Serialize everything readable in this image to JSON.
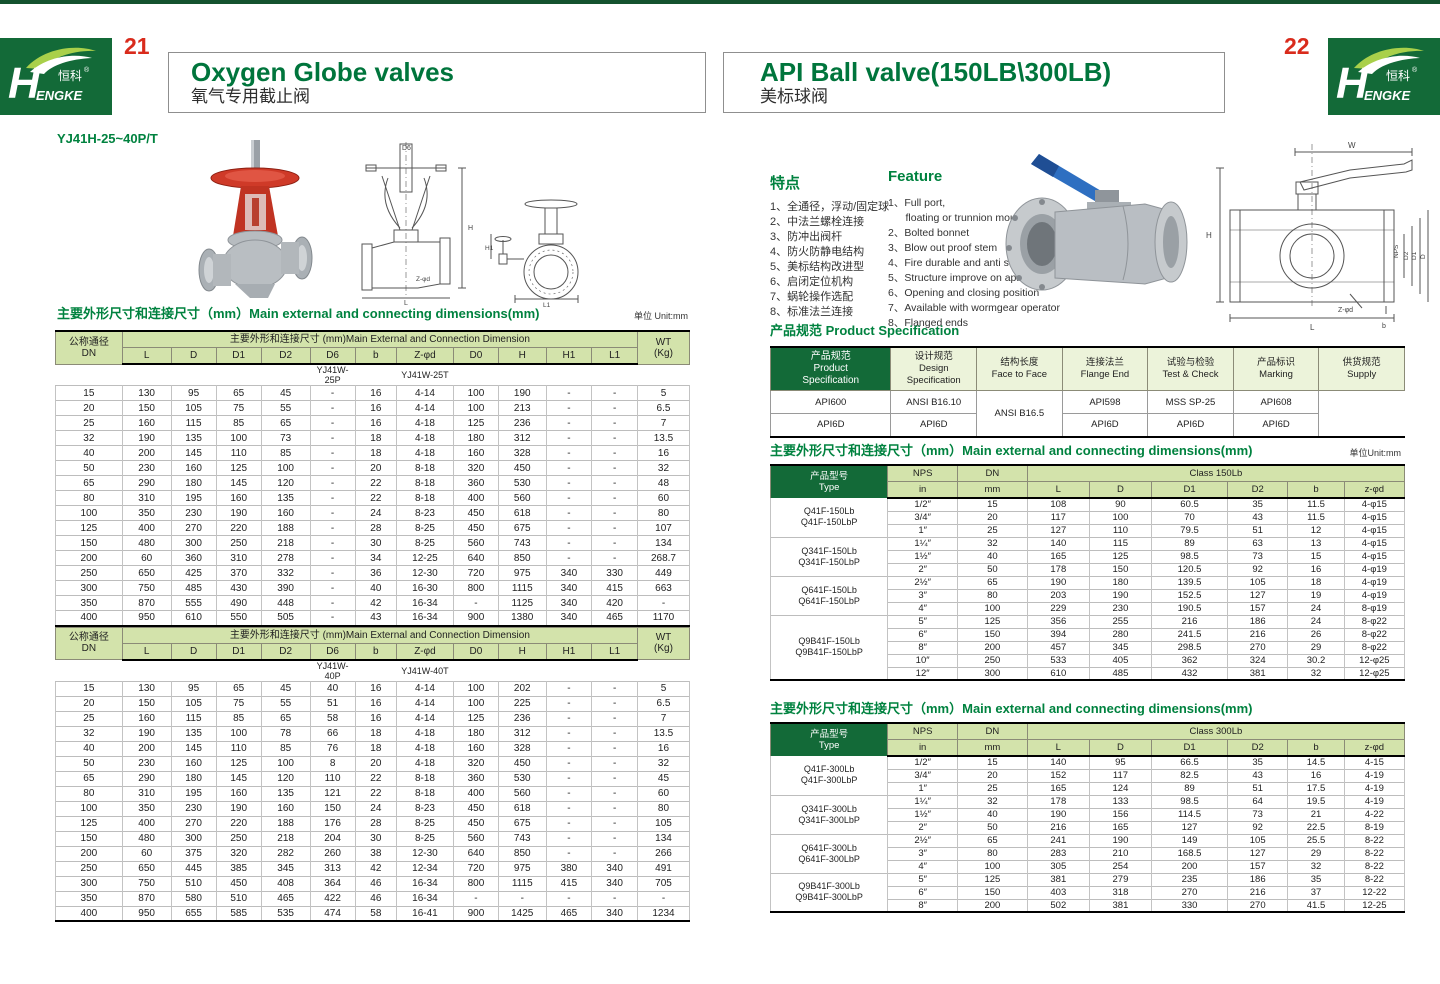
{
  "brand": {
    "logo_text": "HENGKE",
    "logo_cn": "恒科",
    "logo_reg": "®",
    "green": "#136a38",
    "accent_red": "#d92b1c"
  },
  "page_left": {
    "page_number": "21",
    "title_en": "Oxygen Globe valves",
    "title_cn": "氧气专用截止阀",
    "model": "YJ41H-25~40P/T",
    "section_title": "主要外形尺寸和连接尺寸（mm）Main external and connecting dimensions(mm)",
    "unit_label": "单位 Unit:mm",
    "dim_table": {
      "dn_header": "公称通径\nDN",
      "group_header": "主要外形和连接尺寸 (mm)Main External and Connection Dimension",
      "wt_header": "WT\n(Kg)",
      "columns": [
        "L",
        "D",
        "D1",
        "D2",
        "D6",
        "b",
        "Z-φd",
        "D0",
        "H",
        "H1",
        "L1"
      ],
      "sub_labels_1": [
        "YJ41W-25P",
        "YJ41W-25T"
      ],
      "rows_1": [
        [
          "15",
          "130",
          "95",
          "65",
          "45",
          "-",
          "16",
          "4-14",
          "100",
          "190",
          "-",
          "-",
          "5"
        ],
        [
          "20",
          "150",
          "105",
          "75",
          "55",
          "-",
          "16",
          "4-14",
          "100",
          "213",
          "-",
          "-",
          "6.5"
        ],
        [
          "25",
          "160",
          "115",
          "85",
          "65",
          "-",
          "16",
          "4-18",
          "125",
          "236",
          "-",
          "-",
          "7"
        ],
        [
          "32",
          "190",
          "135",
          "100",
          "73",
          "-",
          "18",
          "4-18",
          "180",
          "312",
          "-",
          "-",
          "13.5"
        ],
        [
          "40",
          "200",
          "145",
          "110",
          "85",
          "-",
          "18",
          "4-18",
          "160",
          "328",
          "-",
          "-",
          "16"
        ],
        [
          "50",
          "230",
          "160",
          "125",
          "100",
          "-",
          "20",
          "8-18",
          "320",
          "450",
          "-",
          "-",
          "32"
        ],
        [
          "65",
          "290",
          "180",
          "145",
          "120",
          "-",
          "22",
          "8-18",
          "360",
          "530",
          "-",
          "-",
          "48"
        ],
        [
          "80",
          "310",
          "195",
          "160",
          "135",
          "-",
          "22",
          "8-18",
          "400",
          "560",
          "-",
          "-",
          "60"
        ],
        [
          "100",
          "350",
          "230",
          "190",
          "160",
          "-",
          "24",
          "8-23",
          "450",
          "618",
          "-",
          "-",
          "80"
        ],
        [
          "125",
          "400",
          "270",
          "220",
          "188",
          "-",
          "28",
          "8-25",
          "450",
          "675",
          "-",
          "-",
          "107"
        ],
        [
          "150",
          "480",
          "300",
          "250",
          "218",
          "-",
          "30",
          "8-25",
          "560",
          "743",
          "-",
          "-",
          "134"
        ],
        [
          "200",
          "60",
          "360",
          "310",
          "278",
          "-",
          "34",
          "12-25",
          "640",
          "850",
          "-",
          "-",
          "268.7"
        ],
        [
          "250",
          "650",
          "425",
          "370",
          "332",
          "-",
          "36",
          "12-30",
          "720",
          "975",
          "340",
          "330",
          "449"
        ],
        [
          "300",
          "750",
          "485",
          "430",
          "390",
          "-",
          "40",
          "16-30",
          "800",
          "1115",
          "340",
          "415",
          "663"
        ],
        [
          "350",
          "870",
          "555",
          "490",
          "448",
          "-",
          "42",
          "16-34",
          "-",
          "1125",
          "340",
          "420",
          "-"
        ],
        [
          "400",
          "950",
          "610",
          "550",
          "505",
          "-",
          "43",
          "16-34",
          "900",
          "1380",
          "340",
          "465",
          "1170"
        ]
      ],
      "sub_labels_2": [
        "YJ41W-40P",
        "YJ41W-40T"
      ],
      "rows_2": [
        [
          "15",
          "130",
          "95",
          "65",
          "45",
          "40",
          "16",
          "4-14",
          "100",
          "202",
          "-",
          "-",
          "5"
        ],
        [
          "20",
          "150",
          "105",
          "75",
          "55",
          "51",
          "16",
          "4-14",
          "100",
          "225",
          "-",
          "-",
          "6.5"
        ],
        [
          "25",
          "160",
          "115",
          "85",
          "65",
          "58",
          "16",
          "4-14",
          "125",
          "236",
          "-",
          "-",
          "7"
        ],
        [
          "32",
          "190",
          "135",
          "100",
          "78",
          "66",
          "18",
          "4-18",
          "180",
          "312",
          "-",
          "-",
          "13.5"
        ],
        [
          "40",
          "200",
          "145",
          "110",
          "85",
          "76",
          "18",
          "4-18",
          "160",
          "328",
          "-",
          "-",
          "16"
        ],
        [
          "50",
          "230",
          "160",
          "125",
          "100",
          "8",
          "20",
          "4-18",
          "320",
          "450",
          "-",
          "-",
          "32"
        ],
        [
          "65",
          "290",
          "180",
          "145",
          "120",
          "110",
          "22",
          "8-18",
          "360",
          "530",
          "-",
          "-",
          "45"
        ],
        [
          "80",
          "310",
          "195",
          "160",
          "135",
          "121",
          "22",
          "8-18",
          "400",
          "560",
          "-",
          "-",
          "60"
        ],
        [
          "100",
          "350",
          "230",
          "190",
          "160",
          "150",
          "24",
          "8-23",
          "450",
          "618",
          "-",
          "-",
          "80"
        ],
        [
          "125",
          "400",
          "270",
          "220",
          "188",
          "176",
          "28",
          "8-25",
          "450",
          "675",
          "-",
          "-",
          "105"
        ],
        [
          "150",
          "480",
          "300",
          "250",
          "218",
          "204",
          "30",
          "8-25",
          "560",
          "743",
          "-",
          "-",
          "134"
        ],
        [
          "200",
          "60",
          "375",
          "320",
          "282",
          "260",
          "38",
          "12-30",
          "640",
          "850",
          "-",
          "-",
          "266"
        ],
        [
          "250",
          "650",
          "445",
          "385",
          "345",
          "313",
          "42",
          "12-34",
          "720",
          "975",
          "380",
          "340",
          "491"
        ],
        [
          "300",
          "750",
          "510",
          "450",
          "408",
          "364",
          "46",
          "16-34",
          "800",
          "1115",
          "415",
          "340",
          "705"
        ],
        [
          "350",
          "870",
          "580",
          "510",
          "465",
          "422",
          "46",
          "16-34",
          "-",
          "-",
          "-",
          "-",
          "-"
        ],
        [
          "400",
          "950",
          "655",
          "585",
          "535",
          "474",
          "58",
          "16-41",
          "900",
          "1425",
          "465",
          "340",
          "1234"
        ]
      ],
      "drawing_labels_front": [
        "D6",
        "H",
        "L",
        "Z-φd"
      ],
      "drawing_labels_side": [
        "H1",
        "L1"
      ]
    }
  },
  "page_right": {
    "page_number": "22",
    "title_en": "API Ball valve(150LB\\300LB)",
    "title_cn": "美标球阀",
    "features_cn": {
      "title": "特点",
      "items": [
        "1、全通径，浮动/固定球",
        "2、中法兰螺栓连接",
        "3、防冲出阀杆",
        "4、防火防静电结构",
        "5、美标结构改进型",
        "6、启闭定位机构",
        "7、蜗轮操作选配",
        "8、标准法兰连接"
      ]
    },
    "features_en": {
      "title": "Feature",
      "items": [
        "1、Full port,",
        "      floating or trunnion mounte type",
        "2、Bolted bonnet",
        "3、Blow out proof stem",
        "4、Fire durable and anti static safety",
        "5、Structure improve on api",
        "6、Opening and closing position",
        "7、Available with wormgear operator",
        "8、Flanged ends"
      ]
    },
    "spec": {
      "section_title": "产品规范  Product Specification",
      "corner": "产品规范\nProduct\nSpecification",
      "columns": [
        "设计规范\nDesign Specification",
        "结构长度\nFace to Face",
        "连接法兰\nFlange End",
        "试验与检验\nTest & Check",
        "产品标识\nMarking",
        "供货规范\nSupply"
      ],
      "flange_value": "ANSI B16.5",
      "row_1": [
        "API600",
        "ANSI B16.10",
        "API598",
        "MSS SP-25",
        "API608"
      ],
      "row_2": [
        "API6D",
        "API6D",
        "API6D",
        "API6D",
        "API6D"
      ]
    },
    "dims_150": {
      "section_title": "主要外形尺寸和连接尺寸（mm）Main external and connecting dimensions(mm)",
      "unit_label": "单位Unit:mm",
      "type_header": "产品型号\nType",
      "nps_header": "NPS",
      "nps_sub": "in",
      "dn_header": "DN",
      "dn_sub": "mm",
      "class_header": "Class 150Lb",
      "columns": [
        "L",
        "D",
        "D1",
        "D2",
        "b",
        "z-φd"
      ],
      "groups": [
        {
          "label": "Q41F-150Lb\nQ41F-150LbP",
          "rows": [
            [
              "1/2″",
              "15",
              "108",
              "90",
              "60.5",
              "35",
              "11.5",
              "4-φ15"
            ],
            [
              "3/4″",
              "20",
              "117",
              "100",
              "70",
              "43",
              "11.5",
              "4-φ15"
            ],
            [
              "1″",
              "25",
              "127",
              "110",
              "79.5",
              "51",
              "12",
              "4-φ15"
            ]
          ]
        },
        {
          "label": "Q341F-150Lb\nQ341F-150LbP",
          "rows": [
            [
              "1¼″",
              "32",
              "140",
              "115",
              "89",
              "63",
              "13",
              "4-φ15"
            ],
            [
              "1½″",
              "40",
              "165",
              "125",
              "98.5",
              "73",
              "15",
              "4-φ15"
            ],
            [
              "2″",
              "50",
              "178",
              "150",
              "120.5",
              "92",
              "16",
              "4-φ19"
            ]
          ]
        },
        {
          "label": "Q641F-150Lb\nQ641F-150LbP",
          "rows": [
            [
              "2½″",
              "65",
              "190",
              "180",
              "139.5",
              "105",
              "18",
              "4-φ19"
            ],
            [
              "3″",
              "80",
              "203",
              "190",
              "152.5",
              "127",
              "19",
              "4-φ19"
            ],
            [
              "4″",
              "100",
              "229",
              "230",
              "190.5",
              "157",
              "24",
              "8-φ19"
            ]
          ]
        },
        {
          "label": "Q9B41F-150Lb\nQ9B41F-150LbP",
          "rows": [
            [
              "5″",
              "125",
              "356",
              "255",
              "216",
              "186",
              "24",
              "8-φ22"
            ],
            [
              "6″",
              "150",
              "394",
              "280",
              "241.5",
              "216",
              "26",
              "8-φ22"
            ],
            [
              "8″",
              "200",
              "457",
              "345",
              "298.5",
              "270",
              "29",
              "8-φ22"
            ],
            [
              "10″",
              "250",
              "533",
              "405",
              "362",
              "324",
              "30.2",
              "12-φ25"
            ],
            [
              "12″",
              "300",
              "610",
              "485",
              "432",
              "381",
              "32",
              "12-φ25"
            ]
          ]
        }
      ]
    },
    "dims_300": {
      "section_title": "主要外形尺寸和连接尺寸（mm）Main external and connecting dimensions(mm)",
      "type_header": "产品型号\nType",
      "nps_header": "NPS",
      "nps_sub": "in",
      "dn_header": "DN",
      "dn_sub": "mm",
      "class_header": "Class 300Lb",
      "columns": [
        "L",
        "D",
        "D1",
        "D2",
        "b",
        "z-φd"
      ],
      "groups": [
        {
          "label": "Q41F-300Lb\nQ41F-300LbP",
          "rows": [
            [
              "1/2″",
              "15",
              "140",
              "95",
              "66.5",
              "35",
              "14.5",
              "4-15"
            ],
            [
              "3/4″",
              "20",
              "152",
              "117",
              "82.5",
              "43",
              "16",
              "4-19"
            ],
            [
              "1″",
              "25",
              "165",
              "124",
              "89",
              "51",
              "17.5",
              "4-19"
            ]
          ]
        },
        {
          "label": "Q341F-300Lb\nQ341F-300LbP",
          "rows": [
            [
              "1¼″",
              "32",
              "178",
              "133",
              "98.5",
              "64",
              "19.5",
              "4-19"
            ],
            [
              "1½″",
              "40",
              "190",
              "156",
              "114.5",
              "73",
              "21",
              "4-22"
            ],
            [
              "2″",
              "50",
              "216",
              "165",
              "127",
              "92",
              "22.5",
              "8-19"
            ]
          ]
        },
        {
          "label": "Q641F-300Lb\nQ641F-300LbP",
          "rows": [
            [
              "2½″",
              "65",
              "241",
              "190",
              "149",
              "105",
              "25.5",
              "8-22"
            ],
            [
              "3″",
              "80",
              "283",
              "210",
              "168.5",
              "127",
              "29",
              "8-22"
            ],
            [
              "4″",
              "100",
              "305",
              "254",
              "200",
              "157",
              "32",
              "8-22"
            ]
          ]
        },
        {
          "label": "Q9B41F-300Lb\nQ9B41F-300LbP",
          "rows": [
            [
              "5″",
              "125",
              "381",
              "279",
              "235",
              "186",
              "35",
              "8-22"
            ],
            [
              "6″",
              "150",
              "403",
              "318",
              "270",
              "216",
              "37",
              "12-22"
            ],
            [
              "8″",
              "200",
              "502",
              "381",
              "330",
              "270",
              "41.5",
              "12-25"
            ]
          ]
        }
      ]
    },
    "drawing_labels": [
      "W",
      "H",
      "NPS",
      "D2",
      "D1",
      "D",
      "Z-φd",
      "b",
      "L"
    ]
  }
}
